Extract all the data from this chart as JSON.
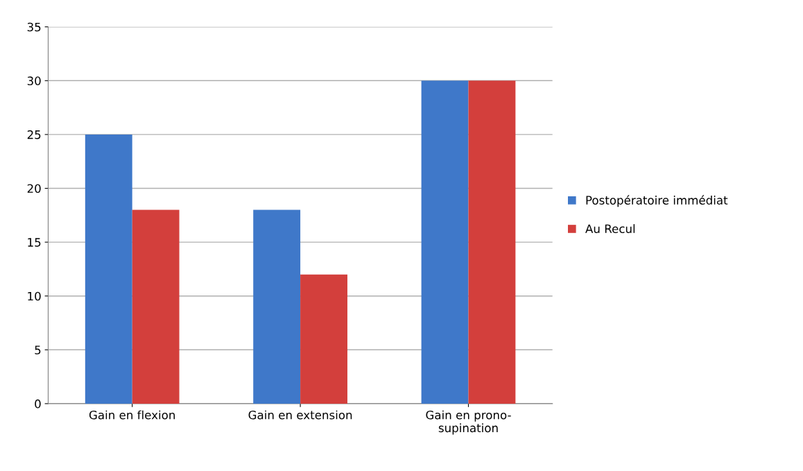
{
  "chart_data": {
    "type": "bar",
    "categories": [
      "Gain en flexion",
      "Gain en extension",
      "Gain en prono-\nsupination"
    ],
    "series": [
      {
        "name": "Postopératoire immédiat",
        "color": "#3f78c9",
        "values": [
          25,
          18,
          30
        ]
      },
      {
        "name": "Au Recul",
        "color": "#d33f3c",
        "values": [
          18,
          12,
          30
        ]
      }
    ],
    "ylim": [
      0,
      35
    ],
    "yticks": [
      0,
      5,
      10,
      15,
      20,
      25,
      30,
      35
    ],
    "grid": "y",
    "legend": "right"
  }
}
